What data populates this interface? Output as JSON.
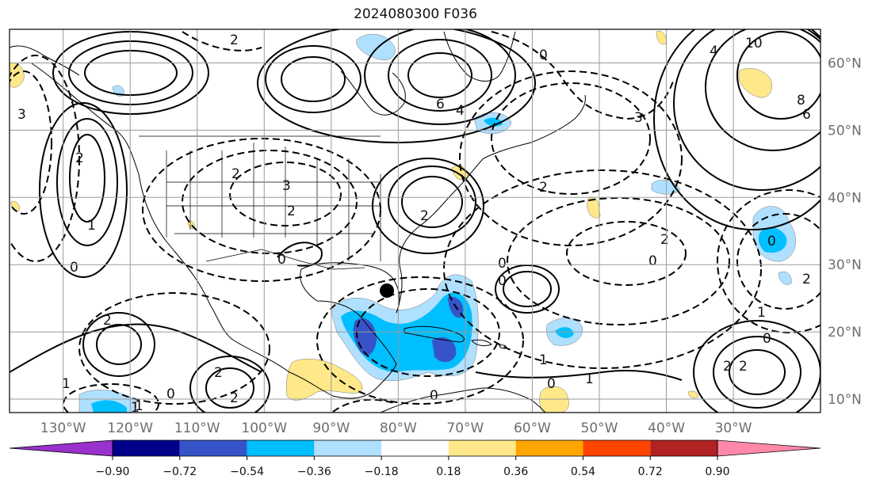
{
  "title": "2024080300 F036",
  "map": {
    "lon_range": [
      -138,
      -17
    ],
    "lat_range": [
      8,
      65
    ],
    "lon_labels": [
      "130°W",
      "120°W",
      "110°W",
      "100°W",
      "90°W",
      "80°W",
      "70°W",
      "60°W",
      "50°W",
      "40°W",
      "30°W"
    ],
    "lat_labels": [
      "60°N",
      "50°N",
      "40°N",
      "30°N",
      "20°N",
      "10°N"
    ],
    "contour_labels": [
      "2",
      "3",
      "1",
      "2",
      "0",
      "6",
      "4",
      "3",
      "0",
      "2",
      "3",
      "2",
      "2",
      "0",
      "0",
      "2",
      "0",
      "0",
      "1",
      "2",
      "1",
      "1",
      "2",
      "0",
      "0",
      "1",
      "2",
      "2",
      "0",
      "1",
      "0",
      "4",
      "10",
      "8",
      "6",
      "2",
      "0",
      "2",
      "1",
      "2"
    ],
    "marker": {
      "type": "filled-circle",
      "lon": -84.5,
      "lat": 26.5
    }
  },
  "colorbar": {
    "levels": [
      "−0.90",
      "−0.72",
      "−0.54",
      "−0.36",
      "−0.18",
      "0.18",
      "0.36",
      "0.54",
      "0.72",
      "0.90"
    ],
    "colors": [
      "#9932cc",
      "#00008b",
      "#3654c8",
      "#00bfff",
      "#b0e0ff",
      "#ffffff",
      "#ffe88a",
      "#ffa500",
      "#ff4500",
      "#b22222",
      "#ff88aa"
    ]
  }
}
